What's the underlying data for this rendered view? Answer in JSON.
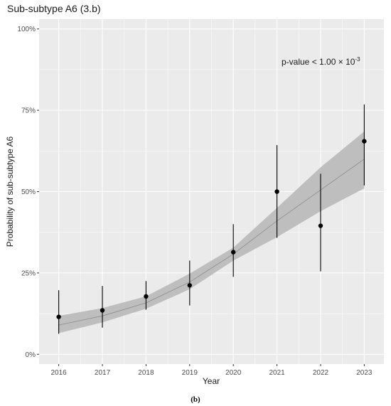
{
  "chart_data": {
    "type": "scatter",
    "title": "Sub-subtype A6 (3.b)",
    "xlabel": "Year",
    "ylabel": "Probability of sub-subtype A6",
    "x": [
      2016,
      2017,
      2018,
      2019,
      2020,
      2021,
      2022,
      2023
    ],
    "xlim": [
      2015.55,
      2023.45
    ],
    "ylim": [
      -0.03,
      1.03
    ],
    "y_ticks": [
      0,
      0.25,
      0.5,
      0.75,
      1.0
    ],
    "y_tick_labels": [
      "0%",
      "25%",
      "50%",
      "75%",
      "100%"
    ],
    "x_tick_labels": [
      "2016",
      "2017",
      "2018",
      "2019",
      "2020",
      "2021",
      "2022",
      "2023"
    ],
    "grid": true,
    "series": [
      {
        "values": [
          0.115,
          0.135,
          0.178,
          0.212,
          0.314,
          0.5,
          0.395,
          0.655
        ],
        "lower": [
          0.063,
          0.082,
          0.137,
          0.15,
          0.238,
          0.358,
          0.255,
          0.519
        ],
        "upper": [
          0.197,
          0.21,
          0.225,
          0.288,
          0.4,
          0.643,
          0.555,
          0.768
        ]
      }
    ],
    "fit": {
      "values": [
        0.09,
        0.118,
        0.158,
        0.222,
        0.308,
        0.41,
        0.505,
        0.6
      ],
      "band_lower": [
        0.065,
        0.098,
        0.14,
        0.2,
        0.288,
        0.36,
        0.44,
        0.51
      ],
      "band_upper": [
        0.118,
        0.142,
        0.178,
        0.248,
        0.328,
        0.45,
        0.575,
        0.685
      ]
    },
    "annotation": {
      "text": "p-value < 1.00 × 10",
      "exponent": "-3"
    },
    "colors": {
      "panel": "#ebebeb",
      "grid": "#ffffff",
      "band": "#bebebe",
      "fit_line": "#8c8c8c",
      "points": "#000000"
    }
  },
  "caption": "(b)"
}
